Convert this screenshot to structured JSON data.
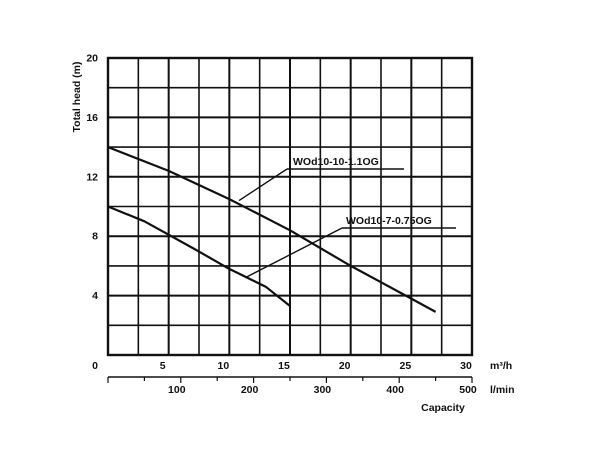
{
  "chart_data": {
    "type": "line",
    "ylabel": "Total head (m)",
    "xlabel": "Capacity",
    "ylim": [
      0,
      20
    ],
    "xlim": [
      0,
      30
    ],
    "y_ticks": [
      0,
      4,
      8,
      12,
      16,
      20
    ],
    "x_ticks": [
      5,
      10,
      15,
      20,
      25,
      30
    ],
    "x_unit": "m³/h",
    "x2_ticks": [
      100,
      200,
      300,
      400,
      500
    ],
    "x2_lim": [
      0,
      500
    ],
    "x2_unit": "l/min",
    "grid": true,
    "series": [
      {
        "name": "WOd10-10-1.1OG",
        "x": [
          0,
          5,
          10,
          15,
          20,
          25,
          27
        ],
        "y": [
          14,
          12.4,
          10.5,
          8.4,
          6.0,
          3.8,
          2.9
        ]
      },
      {
        "name": "WOd10-7-0.75OG",
        "x": [
          0,
          3,
          7,
          10,
          13,
          15
        ],
        "y": [
          10,
          9.0,
          7.2,
          5.8,
          4.6,
          3.3
        ]
      }
    ],
    "annotations": [
      {
        "text": "WOd10-10-1.1OG",
        "series_index": 0,
        "x": 10.8,
        "y": 10.4
      },
      {
        "text": "WOd10-7-0.75OG",
        "series_index": 1,
        "x": 11.3,
        "y": 5.2
      }
    ]
  }
}
